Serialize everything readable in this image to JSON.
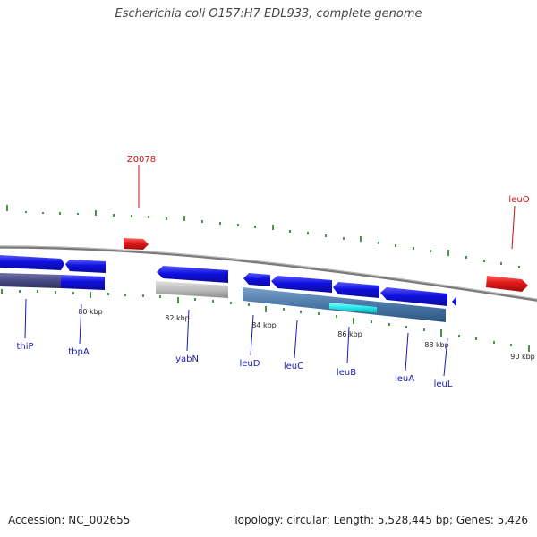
{
  "header": {
    "title": "Escherichia coli O157:H7 EDL933, complete genome"
  },
  "footer": {
    "accession": "Accession: NC_002655",
    "summary": "Topology: circular; Length: 5,528,445 bp; Genes: 5,426"
  },
  "colors": {
    "forward_gene": "#e01818",
    "reverse_gene": "#1010d8",
    "backbone": "#777777",
    "tick": "#1f7a1f",
    "bar_steel": "#4a78a8",
    "bar_slate": "#4a4a88",
    "bar_gray": "#b8b8b8",
    "bar_cyan": "#22e6e6"
  },
  "features": {
    "forward": [
      {
        "name": "Z0078"
      },
      {
        "name": "leuO"
      }
    ],
    "reverse": [
      {
        "name": "thiP"
      },
      {
        "name": "tbpA"
      },
      {
        "name": "yabN"
      },
      {
        "name": "leuD"
      },
      {
        "name": "leuC"
      },
      {
        "name": "leuB"
      },
      {
        "name": "leuA"
      },
      {
        "name": "leuL"
      }
    ]
  },
  "scale": [
    "80 kbp",
    "82 kbp",
    "84 kbp",
    "86 kbp",
    "88 kbp",
    "90 kbp"
  ]
}
